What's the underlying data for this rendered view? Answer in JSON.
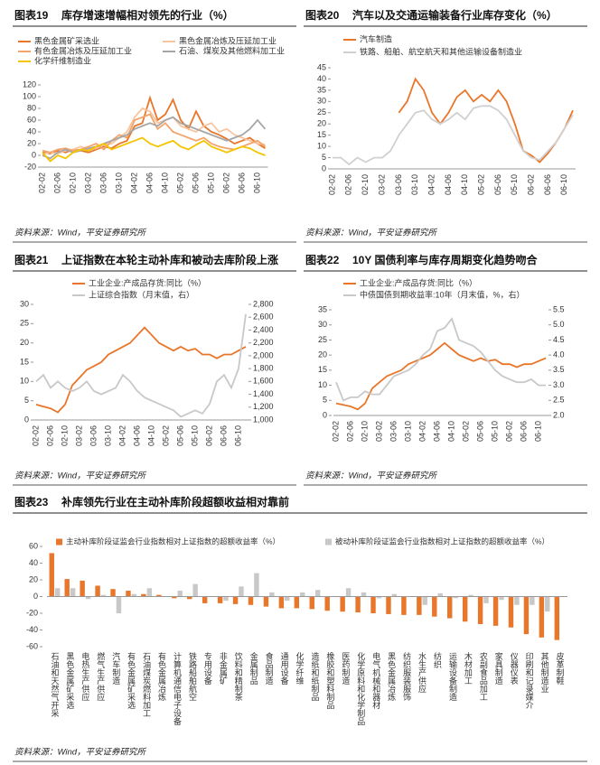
{
  "chart_data": [
    {
      "type": "line",
      "label": "图表19",
      "title": "库存增速增幅相对领先的行业（%）",
      "source": "资料来源：Wind，平安证券研究所",
      "categories": [
        "02-02",
        null,
        "02-06",
        null,
        "02-10",
        null,
        "03-02",
        null,
        "03-06",
        null,
        "03-10",
        null,
        "04-02",
        null,
        "04-06",
        null,
        "04-10",
        null,
        "05-02",
        null,
        "05-06",
        null,
        "05-10",
        null,
        "06-02",
        null,
        "06-06",
        null,
        "06-10",
        null
      ],
      "ylim": [
        -20,
        120
      ],
      "yticks": [
        -20,
        0,
        20,
        40,
        60,
        80,
        100,
        120
      ],
      "series": [
        {
          "name": "黑色金属矿采选业",
          "color": "#E8762B",
          "values": [
            5,
            3,
            8,
            5,
            10,
            8,
            5,
            10,
            15,
            12,
            20,
            25,
            50,
            55,
            98,
            60,
            70,
            95,
            60,
            45,
            75,
            50,
            40,
            35,
            28,
            20,
            25,
            30,
            20,
            12
          ]
        },
        {
          "name": "黑色金属冶炼及压延加工业",
          "color": "#F7C59F",
          "values": [
            2,
            5,
            3,
            8,
            10,
            15,
            10,
            12,
            18,
            20,
            30,
            40,
            65,
            80,
            75,
            55,
            60,
            65,
            50,
            45,
            40,
            50,
            55,
            40,
            45,
            35,
            30,
            25,
            20,
            18
          ]
        },
        {
          "name": "有色金属冶炼及压延加工业",
          "color": "#F2A46B",
          "values": [
            8,
            5,
            10,
            12,
            8,
            10,
            15,
            20,
            10,
            25,
            35,
            30,
            60,
            65,
            70,
            45,
            55,
            40,
            35,
            30,
            25,
            30,
            20,
            15,
            12,
            10,
            15,
            20,
            25,
            15
          ]
        },
        {
          "name": "石油、煤炭及其他燃料加工业",
          "color": "#A6A6A6",
          "values": [
            0,
            -5,
            5,
            10,
            5,
            8,
            12,
            15,
            20,
            25,
            30,
            35,
            45,
            50,
            55,
            50,
            60,
            65,
            55,
            50,
            45,
            40,
            35,
            30,
            25,
            30,
            35,
            45,
            60,
            45
          ]
        },
        {
          "name": "化学纤维制造业",
          "color": "#F5C400",
          "values": [
            5,
            -10,
            0,
            -5,
            5,
            10,
            8,
            15,
            20,
            10,
            15,
            20,
            25,
            30,
            20,
            15,
            20,
            25,
            15,
            10,
            18,
            25,
            15,
            10,
            5,
            10,
            15,
            12,
            5,
            0
          ]
        }
      ]
    },
    {
      "type": "line",
      "label": "图表20",
      "title": "汽车以及交通运输装备行业库存变化（%）",
      "source": "资料来源：Wind，平安证券研究所",
      "categories": [
        "02-02",
        null,
        "02-06",
        null,
        "02-10",
        null,
        "03-02",
        null,
        "03-06",
        null,
        "03-10",
        null,
        "04-02",
        null,
        "04-06",
        null,
        "04-10",
        null,
        "05-02",
        null,
        "05-06",
        null,
        "05-10",
        null,
        "06-02",
        null,
        "06-06",
        null,
        "06-10",
        null
      ],
      "ylim": [
        0,
        45
      ],
      "yticks": [
        0,
        5,
        10,
        15,
        20,
        25,
        30,
        35,
        40,
        45
      ],
      "series": [
        {
          "name": "汽车制造",
          "color": "#E8762B",
          "values": [
            null,
            null,
            null,
            null,
            null,
            null,
            null,
            null,
            25,
            30,
            40,
            35,
            25,
            20,
            25,
            32,
            35,
            30,
            33,
            30,
            35,
            30,
            20,
            8,
            6,
            3,
            7,
            12,
            18,
            26
          ]
        },
        {
          "name": "铁路、船舶、航空航天和其他运输设备制造业",
          "color": "#D0D0D0",
          "values": [
            5,
            5,
            2,
            5,
            3,
            5,
            5,
            8,
            15,
            20,
            25,
            26,
            22,
            20,
            22,
            25,
            22,
            27,
            28,
            28,
            26,
            22,
            15,
            8,
            5,
            4,
            8,
            12,
            18,
            24
          ]
        }
      ]
    },
    {
      "type": "line",
      "label": "图表21",
      "title": "上证指数在本轮主动补库和被动去库阶段上涨",
      "source": "资料来源：Wind，平安证券研究所",
      "categories": [
        "02-02",
        null,
        "02-06",
        null,
        "02-10",
        null,
        "03-02",
        null,
        "03-06",
        null,
        "03-10",
        null,
        "04-02",
        null,
        "04-06",
        null,
        "04-10",
        null,
        "05-02",
        null,
        "05-06",
        null,
        "05-10",
        null,
        "06-02",
        null,
        "06-06",
        null,
        "06-10",
        null
      ],
      "ylim": [
        0,
        30
      ],
      "yticks": [
        0,
        5,
        10,
        15,
        20,
        25,
        30
      ],
      "y2lim": [
        1000,
        2800
      ],
      "y2ticks": [
        {
          "value": 1000,
          "label": "1,000"
        },
        {
          "value": 1200,
          "label": "1,200"
        },
        {
          "value": 1400,
          "label": "1,400"
        },
        {
          "value": 1600,
          "label": "1,600"
        },
        {
          "value": 1800,
          "label": "1,800"
        },
        {
          "value": 2000,
          "label": "2,000"
        },
        {
          "value": 2200,
          "label": "2,200"
        },
        {
          "value": 2400,
          "label": "2,400"
        },
        {
          "value": 2600,
          "label": "2,600"
        },
        {
          "value": 2800,
          "label": "2,800"
        }
      ],
      "series": [
        {
          "name": "工业企业:产成品存货:同比（%）",
          "color": "#E8762B",
          "values": [
            4,
            3.5,
            3,
            2,
            4,
            9,
            11,
            13,
            14,
            15,
            17,
            18,
            19,
            20,
            22,
            24,
            22,
            20,
            19,
            18,
            19,
            18,
            18.5,
            17,
            17,
            16,
            17,
            17,
            18,
            19
          ]
        },
        {
          "name": "上证综合指数（月末值，右）",
          "color": "#C8C8C8",
          "axis": "y2",
          "values": [
            1600,
            1700,
            1500,
            1600,
            1500,
            1450,
            1500,
            1600,
            1450,
            1400,
            1450,
            1500,
            1700,
            1600,
            1450,
            1350,
            1300,
            1250,
            1200,
            1150,
            1050,
            1100,
            1150,
            1100,
            1250,
            1600,
            1700,
            1500,
            1800,
            2650
          ]
        }
      ]
    },
    {
      "type": "line",
      "label": "图表22",
      "title": "10Y 国债利率与库存周期变化趋势吻合",
      "source": "资料来源：Wind，平安证券研究所",
      "categories": [
        "02-02",
        null,
        "02-06",
        null,
        "02-10",
        null,
        "03-02",
        null,
        "03-06",
        null,
        "03-10",
        null,
        "04-02",
        null,
        "04-06",
        null,
        "04-10",
        null,
        "05-02",
        null,
        "05-06",
        null,
        "05-10",
        null,
        "06-02",
        null,
        "06-06",
        null,
        "06-10",
        null
      ],
      "ylim": [
        0,
        35
      ],
      "yticks": [
        0,
        5,
        10,
        15,
        20,
        25,
        30,
        35
      ],
      "y2lim": [
        2,
        5.5
      ],
      "y2ticks": [
        {
          "value": 2,
          "label": "2.0"
        },
        2.5,
        {
          "value": 3,
          "label": "3.0"
        },
        3.5,
        {
          "value": 4,
          "label": "4.0"
        },
        4.5,
        {
          "value": 5,
          "label": "5.0"
        },
        5.5
      ],
      "series": [
        {
          "name": "工业企业:产成品存货:同比（%）",
          "color": "#E8762B",
          "values": [
            4,
            3.5,
            3,
            2,
            4,
            9,
            11,
            13,
            14,
            15,
            17,
            18,
            19,
            20,
            22,
            24,
            22,
            20,
            19,
            18,
            19,
            18,
            18.5,
            17,
            17,
            16,
            17,
            17,
            18,
            19
          ]
        },
        {
          "name": "中债国债到期收益率:10年（月末值，%，右）",
          "color": "#C8C8C8",
          "axis": "y2",
          "values": [
            3.1,
            2.5,
            2.6,
            2.6,
            2.8,
            2.7,
            2.7,
            3.0,
            3.3,
            3.4,
            3.5,
            3.7,
            4.0,
            4.2,
            4.8,
            4.9,
            5.2,
            4.5,
            4.4,
            4.3,
            4.1,
            3.8,
            3.5,
            3.3,
            3.2,
            3.1,
            3.1,
            3.2,
            3.0,
            3.0
          ]
        }
      ]
    },
    {
      "type": "bar",
      "label": "图表23",
      "title": "补库领先行业在主动补库阶段超额收益相对靠前",
      "source": "资料来源：Wind，平安证券研究所",
      "categories": [
        "石油和天然气开采",
        "黑色金属矿采选",
        "电热生产供应",
        "燃气生产供应",
        "汽车制造",
        "有色金属矿采选",
        "石油煤炭燃料加工",
        "有色金属冶炼",
        "计算机通信电子设备",
        "铁路船舶航空",
        "专用设备",
        "非金属矿",
        "饮料和精制茶",
        "金属制品",
        "食品制造",
        "通用设备",
        "化学纤维",
        "造纸和纸制品",
        "橡胶和塑料制品",
        "医药制造",
        "化学原料和化学制品",
        "电气机械和器材",
        "黑色金属冶炼",
        "纺织服装服饰",
        "水生产供应",
        "纺织",
        "运输设备制造",
        "木材加工",
        "农副食品加工",
        "家具制造",
        "仪器仪表",
        "印刷和记录媒介",
        "其他制造业",
        "皮革制鞋"
      ],
      "ylim": [
        -60,
        60
      ],
      "yticks": [
        -60,
        -40,
        -20,
        0,
        20,
        40,
        60
      ],
      "series": [
        {
          "name": "主动补库阶段证监会行业指数相对上证指数的超额收益率（%）",
          "color": "#E8762B",
          "values": [
            52,
            21,
            19,
            13,
            9,
            7,
            3,
            2,
            -2,
            -3,
            -8,
            -8,
            -9,
            -10,
            -12,
            -14,
            -14,
            -15,
            -17,
            -18,
            -19,
            -20,
            -21,
            -22,
            -22,
            -24,
            -26,
            -30,
            -33,
            -35,
            -37,
            -45,
            -49,
            -52
          ]
        },
        {
          "name": "被动补库阶段证监会行业指数相对上证指数的超额收益率（%）",
          "color": "#C8C8C8",
          "values": [
            10,
            10,
            -3,
            2,
            -20,
            3,
            10,
            0,
            7,
            15,
            0,
            -5,
            12,
            28,
            5,
            -5,
            5,
            8,
            0,
            10,
            5,
            -2,
            3,
            0,
            -10,
            4,
            -2,
            2,
            -8,
            -4,
            -10,
            -10,
            -18,
            0
          ]
        }
      ]
    }
  ]
}
